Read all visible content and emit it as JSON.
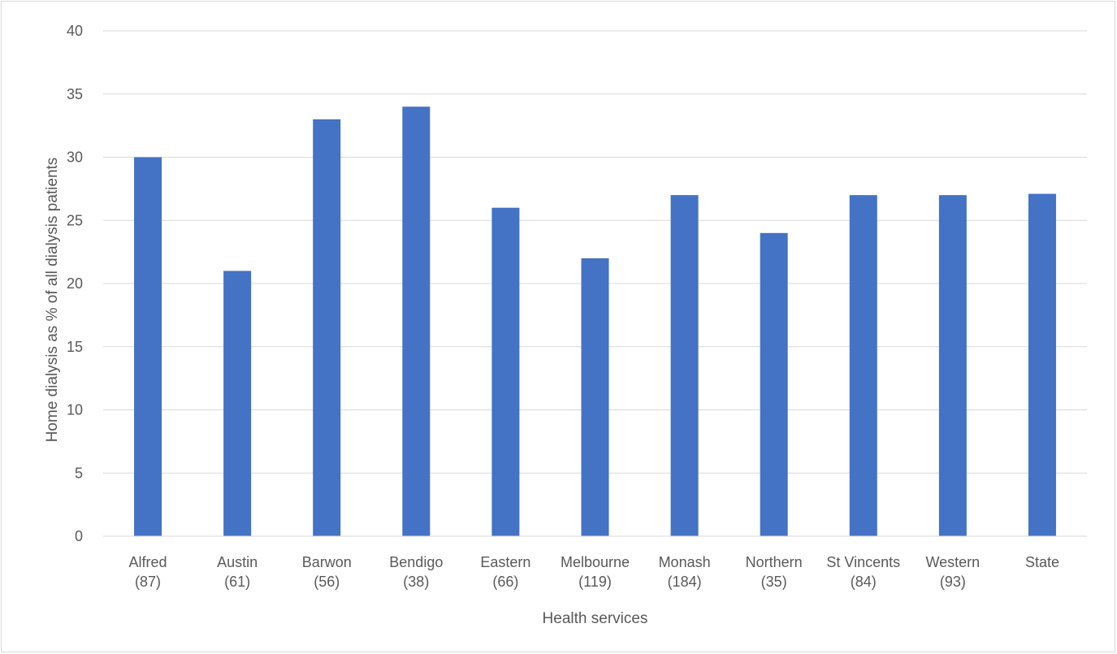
{
  "chart_data": {
    "type": "bar",
    "title": "",
    "xlabel": "Health services",
    "ylabel": "Home dialysis as  % of all dialysis patients",
    "ylim": [
      0,
      40
    ],
    "yticks": [
      0,
      5,
      10,
      15,
      20,
      25,
      30,
      35,
      40
    ],
    "grid": true,
    "legend": "none",
    "categories": [
      [
        "Alfred",
        "(87)"
      ],
      [
        "Austin",
        "(61)"
      ],
      [
        "Barwon",
        "(56)"
      ],
      [
        "Bendigo",
        "(38)"
      ],
      [
        "Eastern",
        "(66)"
      ],
      [
        "Melbourne",
        "(119)"
      ],
      [
        "Monash",
        "(184)"
      ],
      [
        "Northern",
        "(35)"
      ],
      [
        "St Vincents",
        "(84)"
      ],
      [
        "Western",
        "(93)"
      ],
      [
        "State"
      ]
    ],
    "values": [
      30,
      21,
      33,
      34,
      26,
      22,
      27,
      24,
      27,
      27,
      27.1
    ],
    "colors": {
      "bar": "#4472C4",
      "grid": "#d9d9d9",
      "axis": "#d9d9d9",
      "text": "#595959"
    }
  }
}
